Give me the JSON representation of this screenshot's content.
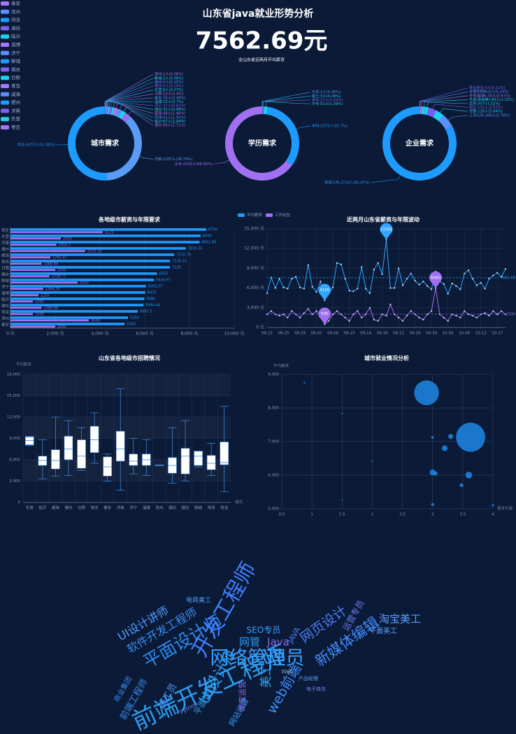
{
  "header": {
    "title": "山东省java就业形势分析",
    "value": "7562.69元",
    "subtitle": "全山东省近两月平均薪资"
  },
  "chart_data": [
    {
      "type": "donut",
      "title": "城市需求",
      "legend": [
        "泰安",
        "滨州",
        "菏泽",
        "潍坊",
        "临沂",
        "淄博",
        "济宁",
        "聊城",
        "烟台",
        "日照",
        "青岛",
        "威海",
        "德州",
        "济南",
        "东营",
        "枣庄"
      ],
      "legend_colors": [
        "#a678f5",
        "#5b8ff9",
        "#1e9bff",
        "#7a63e8",
        "#20d0f0"
      ],
      "slices": [
        {
          "label": "滨州:2人(0.06%)",
          "value": 2
        },
        {
          "label": "聊城:3人(0.09%)",
          "value": 3
        },
        {
          "label": "德州:5人(0.15%)",
          "value": 5
        },
        {
          "label": "枣庄:6人(0.18%)",
          "value": 6
        },
        {
          "label": "东营:9人(0.27%)",
          "value": 9
        },
        {
          "label": "日照:13人(0.4%)",
          "value": 13
        },
        {
          "label": "泰安:16人(0.49%)",
          "value": 16
        },
        {
          "label": "淄博:23人(0.7%)",
          "value": 23
        },
        {
          "label": "济宁:27人(0.82%)",
          "value": 27
        },
        {
          "label": "潍坊:32人(0.98%)",
          "value": 32
        },
        {
          "label": "威海:48人(1.46%)",
          "value": 48
        },
        {
          "label": "菏泽:63人(1.92%)",
          "value": 63
        },
        {
          "label": "临沂:67人(2.04%)",
          "value": 67
        },
        {
          "label": "烟台:89人(2.71%)",
          "value": 89
        },
        {
          "label": "济南:1207人(36.79%)",
          "value": 1207
        },
        {
          "label": "青岛:1675人(51.05%)",
          "value": 1675
        }
      ],
      "colors": [
        "#a678f5",
        "#20d0f0",
        "#5b8ff9",
        "#7b5cf0",
        "#1ecfe8",
        "#a678f5",
        "#5b8ff9",
        "#20d0f0",
        "#7b5cf0",
        "#1ecfe8",
        "#a678f5",
        "#5b8ff9",
        "#20d0f0",
        "#9a6cf0",
        "#5a9cf5",
        "#1e9bff"
      ]
    },
    {
      "type": "donut",
      "title": "学历需求",
      "slices": [
        {
          "label": "中技:2人(0.06%)",
          "value": 2
        },
        {
          "label": "硕士:3人(0.09%)",
          "value": 3
        },
        {
          "label": "高中:21人(0.64%)",
          "value": 21
        },
        {
          "label": "中专:52人(1.59%)",
          "value": 52
        },
        {
          "label": "本科:1073人(32.7%)",
          "value": 1073
        },
        {
          "label": "大专:2130人(64.92%)",
          "value": 2130
        }
      ],
      "colors": [
        "#5b8ff9",
        "#20d0f0",
        "#7b5cf0",
        "#1ecfe8",
        "#1e9bff",
        "#a070f0"
      ]
    },
    {
      "type": "donut",
      "title": "企业需求",
      "slices": [
        {
          "label": "事业单位:4人(0.12%)",
          "value": 4
        },
        {
          "label": "非营利机构:8人(0.24%)",
          "value": 8
        },
        {
          "label": "外资(欧美):30人(0.91%)",
          "value": 30
        },
        {
          "label": "外资(非欧美):40人(1.22%)",
          "value": 40
        },
        {
          "label": "合资:50人(1.52%)",
          "value": 50
        },
        {
          "label": "国企:115人(3.51%)",
          "value": 115
        },
        {
          "label": "合营:126人(3.84%)",
          "value": 126
        },
        {
          "label": "上市公司:189人(5.76%)",
          "value": 189
        },
        {
          "label": "民营公司:2719人(82.87%)",
          "value": 2719
        }
      ],
      "colors": [
        "#7b5cf0",
        "#5b8ff9",
        "#a678f5",
        "#20d0f0",
        "#1ecfe8",
        "#7b5cf0",
        "#20d0f0",
        "#5b8ff9",
        "#1e9bff"
      ]
    },
    {
      "type": "bar",
      "orientation": "horizontal",
      "title": "各地级市薪资与年限要求",
      "categories": [
        "枣庄",
        "东营",
        "济南",
        "德州",
        "威海",
        "青岛",
        "日照",
        "烟台",
        "聊城",
        "济宁",
        "淄博",
        "临沂",
        "潍坊",
        "菏泽",
        "滨州",
        "泰安"
      ],
      "series": [
        {
          "name": "平均薪资",
          "color": "#1e9bff",
          "values": [
            8750,
            8500,
            8451.66,
            7833.33,
            7315.79,
            7128.13,
            7125,
            6550,
            6416.67,
            6053.57,
            6025,
            5980,
            5944.44,
            5687.5,
            5250,
            5100
          ]
        },
        {
          "name": "工作经验",
          "color": "#a070f0",
          "values": [
            4125,
            2250,
            2050.5,
            3333.33,
            1781.47,
            1388.89,
            2000,
            1739.77,
            3000,
            1464.29,
            1250,
            1000,
            1388.89,
            1000,
            3500,
            2000
          ]
        }
      ],
      "xlim": [
        0,
        10000
      ],
      "xticks": [
        {
          "value": 0,
          "label": "0 元"
        },
        {
          "value": 2000,
          "label": "2,000 元"
        },
        {
          "value": 4000,
          "label": "4,000 元"
        },
        {
          "value": 6000,
          "label": "6,000 元"
        },
        {
          "value": 8000,
          "label": "8,000 元"
        },
        {
          "value": 10000,
          "label": "10,000 元"
        }
      ]
    },
    {
      "type": "line",
      "title": "近两月山东省薪资与年限波动",
      "categories": [
        "08-21",
        null,
        null,
        null,
        "08-25",
        null,
        null,
        null,
        "08-29",
        null,
        null,
        null,
        "09-02",
        null,
        null,
        null,
        "09-06",
        null,
        null,
        null,
        "09-10",
        null,
        null,
        null,
        "09-14",
        null,
        null,
        null,
        "09-18",
        null,
        null,
        null,
        "09-22",
        null,
        null,
        null,
        "09-26",
        null,
        null,
        null,
        "09-30",
        null,
        null,
        null,
        "10-05",
        null,
        null,
        null,
        "10-09",
        null,
        null,
        null,
        "10-13",
        null,
        null,
        null,
        "10-17",
        null,
        null
      ],
      "series": [
        {
          "name": "平均薪资",
          "color": "#2fa6ff",
          "average": 7562.69,
          "values": [
            5200,
            7600,
            6000,
            7400,
            6100,
            5900,
            7400,
            7700,
            6100,
            5900,
            9500,
            6200,
            5400,
            7000,
            4125,
            5100,
            6100,
            9800,
            9600,
            7400,
            5600,
            5500,
            5900,
            9200,
            5900,
            5200,
            8800,
            9800,
            8100,
            13350,
            6000,
            6000,
            9000,
            6400,
            7400,
            8200,
            7100,
            6500,
            7000,
            6300,
            5800,
            8500,
            7000,
            6600,
            5100,
            6700,
            6300,
            5800,
            8200,
            8700,
            7400,
            6400,
            6800,
            5900,
            7400,
            7900,
            8300,
            7700,
            8900
          ]
        },
        {
          "name": "工作经验",
          "color": "#a070f0",
          "average": 2030,
          "values": [
            2000,
            2500,
            2000,
            1800,
            2000,
            1500,
            2500,
            2000,
            1500,
            2200,
            2800,
            2000,
            2500,
            1800,
            500,
            1000,
            2000,
            2500,
            2000,
            1500,
            1000,
            2000,
            2500,
            1500,
            2000,
            3000,
            1200,
            1000,
            2000,
            1800,
            3500,
            2000,
            1500,
            1000,
            1800,
            2500,
            2000,
            1500,
            1200,
            2000,
            2500,
            6000,
            2000,
            1500,
            1000,
            2000,
            1800,
            1500,
            2500,
            2000,
            1800,
            1500,
            2000,
            2200,
            1800,
            2500,
            2000,
            2500,
            2000
          ]
        }
      ],
      "ylim": [
        0,
        15000
      ],
      "yticks": [
        {
          "value": 0,
          "label": "0 元"
        },
        {
          "value": 3000,
          "label": "3,000 元"
        },
        {
          "value": 6000,
          "label": "6,000 元"
        },
        {
          "value": 9000,
          "label": "9,000 元"
        },
        {
          "value": 12000,
          "label": "12,000 元"
        },
        {
          "value": 15000,
          "label": "15,000 元"
        }
      ],
      "grid": true
    },
    {
      "type": "boxplot",
      "title": "山东省各地级市招聘情况",
      "y_label": "平均薪资",
      "x_label": "城市",
      "categories": [
        "东营",
        "临沂",
        "威海",
        "德州",
        "日照",
        "枣庄",
        "泰安",
        "济南",
        "济宁",
        "淄博",
        "滨州",
        "潍坊",
        "烟台",
        "聊城",
        "菏泽",
        "青岛"
      ],
      "boxes": [
        [
          8000,
          8100,
          8700,
          9200,
          9300
        ],
        [
          3300,
          5200,
          5900,
          6500,
          8800
        ],
        [
          3700,
          4700,
          5900,
          7400,
          12000
        ],
        [
          3800,
          6000,
          7500,
          9300,
          11500
        ],
        [
          4500,
          4800,
          6500,
          8800,
          10500
        ],
        [
          5500,
          7000,
          8800,
          10700,
          12600
        ],
        [
          3000,
          3700,
          5000,
          6400,
          6800
        ],
        [
          1700,
          5800,
          7500,
          10000,
          16000
        ],
        [
          4000,
          5200,
          5800,
          6800,
          9000
        ],
        [
          3800,
          5200,
          6000,
          6800,
          8800
        ],
        [
          5250,
          5250,
          5250,
          5250,
          5250
        ],
        [
          2700,
          4100,
          5200,
          6300,
          10500
        ],
        [
          3000,
          4000,
          6500,
          7600,
          11500
        ],
        [
          5000,
          5200,
          6500,
          7200,
          7200
        ],
        [
          3800,
          4600,
          5500,
          6600,
          8300
        ],
        [
          1500,
          5300,
          5600,
          8500,
          13500
        ]
      ],
      "ylim": [
        0,
        18000
      ],
      "yticks": [
        0,
        {
          "value": 3000,
          "label": "3,000"
        },
        {
          "value": 6000,
          "label": "6,000"
        },
        {
          "value": 9000,
          "label": "9,000"
        },
        {
          "value": 12000,
          "label": "12,000"
        },
        {
          "value": 15000,
          "label": "15,000"
        },
        {
          "value": 18000,
          "label": "18,000"
        }
      ],
      "grid": true
    },
    {
      "type": "scatter",
      "title": "城市就业情况分析",
      "y_label": "平均薪资",
      "x_label": "要求年限",
      "color": "#1e88e5",
      "points": [
        [
          0.875,
          8750,
          6
        ],
        [
          1.5,
          7833.33,
          5
        ],
        [
          1.5,
          5250,
          2
        ],
        [
          2,
          6416.67,
          3
        ],
        [
          2.9,
          8451.66,
          1207
        ],
        [
          3.63,
          7128.13,
          1675
        ],
        [
          3,
          7125,
          13
        ],
        [
          3.3,
          7150,
          48
        ],
        [
          3.2,
          6800,
          63
        ],
        [
          3,
          6080,
          67
        ],
        [
          3.05,
          6050,
          32
        ],
        [
          3.6,
          6000,
          89
        ],
        [
          3.48,
          5700,
          27
        ],
        [
          3,
          5125,
          16
        ],
        [
          4,
          5100,
          9
        ]
      ],
      "xlim": [
        0.5,
        4
      ],
      "xticks": [
        0.5,
        1,
        1.5,
        2,
        2.5,
        3,
        3.5,
        4
      ],
      "ylim": [
        5000,
        9000
      ],
      "yticks": [
        {
          "value": 5000,
          "label": "5,000"
        },
        {
          "value": 6000,
          "label": "6,000"
        },
        {
          "value": 7000,
          "label": "7,000"
        },
        {
          "value": 8000,
          "label": "8,000"
        },
        {
          "value": 9000,
          "label": "9,000"
        }
      ],
      "grid": true
    },
    {
      "type": "wordcloud",
      "words": [
        "前端开发工程师",
        "网络管理员",
        "平面设计师",
        "开发工程师",
        "软件开发工程师",
        "UI设计讲师",
        "UI设计师",
        "新媒体编辑",
        "网页设计",
        "淘宝美工",
        "SEO专员",
        "网管",
        "Java",
        "美工",
        "web前端",
        "平面美工",
        "运营专员",
        "电商美工",
        "前端工程师",
        "网站运营",
        "淘宝运营",
        "平面设计",
        "施工员",
        "商业集团",
        "Python",
        "JAVA",
        "Web",
        "产品经理",
        "电子商务"
      ]
    }
  ]
}
